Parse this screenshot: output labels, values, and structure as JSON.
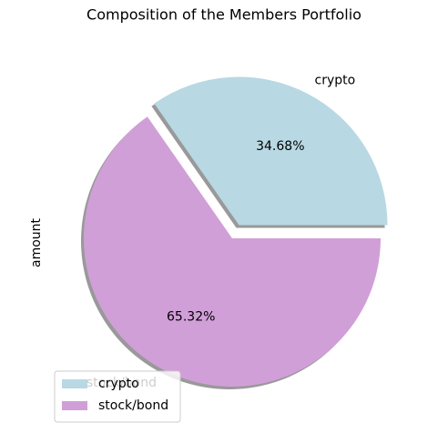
{
  "chart_data": {
    "type": "pie",
    "title": "Composition of the Members Portfolio",
    "ylabel": "amount",
    "categories": [
      "crypto",
      "stock/bond"
    ],
    "values": [
      34.68,
      65.32
    ],
    "value_labels": [
      "34.68%",
      "65.32%"
    ],
    "colors": [
      "#b8d8e3",
      "#d19fd8"
    ],
    "explode": [
      0.1,
      0
    ],
    "shadow": true,
    "legend": "lower left"
  }
}
